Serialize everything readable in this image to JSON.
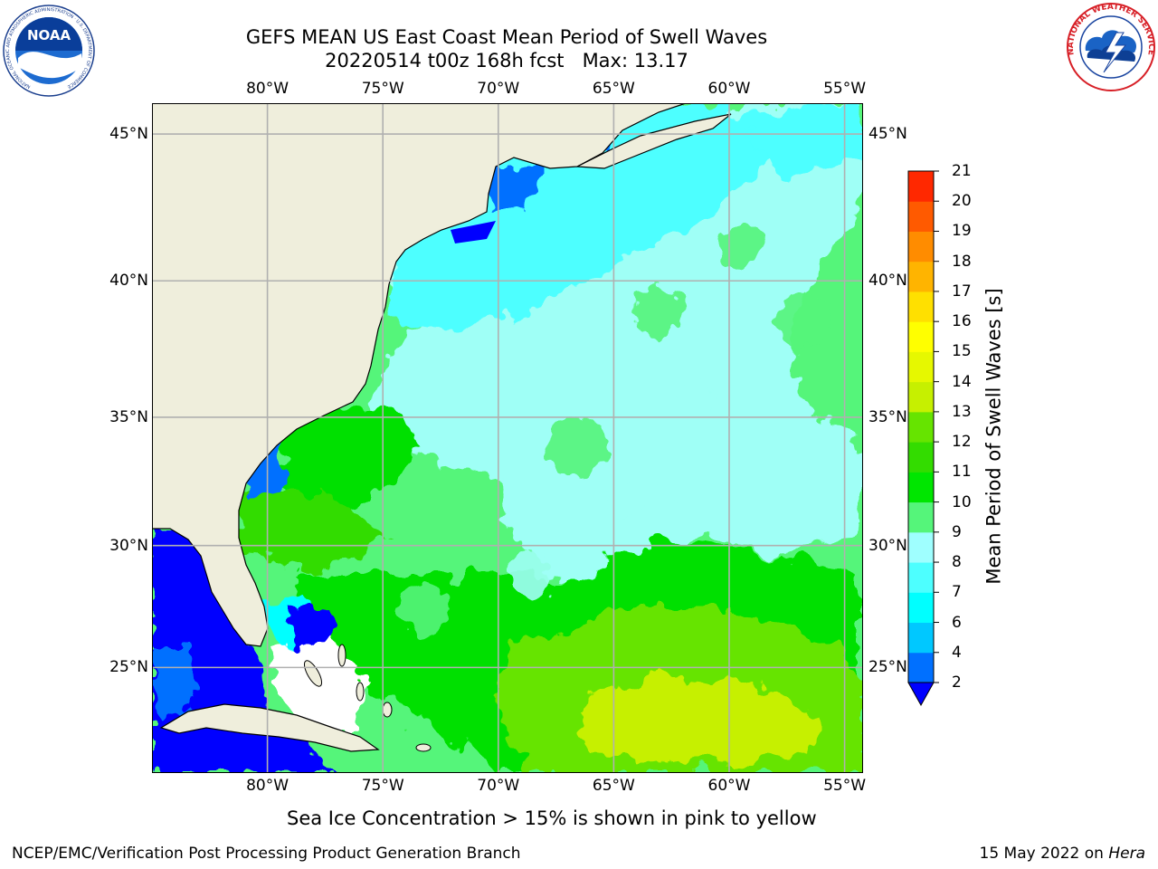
{
  "header": {
    "title_line1": "GEFS MEAN US East Coast Mean Period of Swell Waves",
    "title_line2": "20220514 t00z 168h fcst   Max: 13.17"
  },
  "logos": {
    "left": {
      "name": "noaa-logo",
      "text": "NOAA",
      "ring_text": "NATIONAL OCEANIC AND ATMOSPHERIC ADMINISTRATION · U.S. DEPARTMENT OF COMMERCE"
    },
    "right": {
      "name": "nws-logo",
      "ring_text": "NATIONAL WEATHER SERVICE"
    }
  },
  "map": {
    "lon_ticks": [
      "80°W",
      "75°W",
      "70°W",
      "65°W",
      "60°W",
      "55°W"
    ],
    "lat_ticks": [
      "45°N",
      "40°N",
      "35°N",
      "30°N",
      "25°N"
    ],
    "extent": {
      "lon": [
        -85,
        -54.2
      ],
      "lat": [
        20.5,
        46
      ]
    },
    "colors": {
      "land": "#efeedc",
      "ocean_low": "#00e5ff",
      "ocean_mid": "#9ffff6",
      "ocean_band9": "#4ff57a",
      "ocean_band10": "#00e000",
      "ocean_band11": "#55e835",
      "ocean_band12": "#c8f00a",
      "deep_blue": "#0000ff",
      "grid": "#b0b0b0"
    }
  },
  "colorbar": {
    "label": "Mean Period of Swell Waves [s]",
    "ticks": [
      "2",
      "4",
      "6",
      "7",
      "8",
      "9",
      "10",
      "11",
      "12",
      "13",
      "14",
      "15",
      "16",
      "17",
      "18",
      "19",
      "20",
      "21"
    ],
    "colors": [
      "#0070ff",
      "#00c8ff",
      "#00ffff",
      "#4dffff",
      "#9fffff",
      "#55f57a",
      "#00e600",
      "#33dc00",
      "#66e400",
      "#c6f000",
      "#e6f800",
      "#ffff00",
      "#ffe000",
      "#ffb400",
      "#ff8c00",
      "#ff5a00",
      "#ff2800",
      "#ff0000"
    ],
    "extend_low_color": "#0000ff"
  },
  "footer": {
    "note": "Sea Ice Concentration > 15% is shown in pink to yellow",
    "left": "NCEP/EMC/Verification Post Processing Product Generation Branch",
    "date": "15 May 2022 on ",
    "machine": "Hera"
  }
}
